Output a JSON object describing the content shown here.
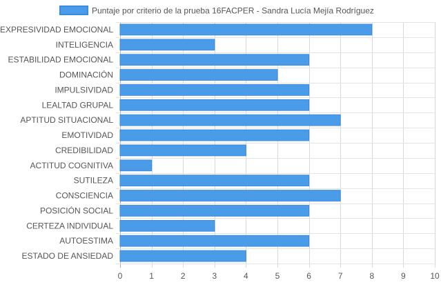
{
  "chart_data": {
    "type": "bar",
    "orientation": "horizontal",
    "categories": [
      "EXPRESIVIDAD EMOCIONAL",
      "INTELIGENCIA",
      "ESTABILIDAD EMOCIONAL",
      "DOMINACIÓN",
      "IMPULSIVIDAD",
      "LEALTAD GRUPAL",
      "APTITUD SITUACIONAL",
      "EMOTIVIDAD",
      "CREDIBILIDAD",
      "ACTITUD COGNITIVA",
      "SUTILEZA",
      "CONSCIENCIA",
      "POSICIÓN SOCIAL",
      "CERTEZA INDIVIDUAL",
      "AUTOESTIMA",
      "ESTADO DE ANSIEDAD"
    ],
    "series": [
      {
        "name": "Puntaje por criterio de la prueba 16FACPER - Sandra Lucía Mejía Rodríguez",
        "values": [
          8,
          3,
          6,
          5,
          6,
          6,
          7,
          6,
          4,
          1,
          6,
          7,
          6,
          3,
          6,
          4
        ],
        "color": "#4a9ce9",
        "border_color": "#3a8ae0"
      }
    ],
    "xlim": [
      0,
      10
    ],
    "x_ticks": [
      "0",
      "1",
      "2",
      "3",
      "4",
      "5",
      "6",
      "7",
      "8",
      "9",
      "10"
    ],
    "grid": true,
    "legend_position": "top"
  }
}
